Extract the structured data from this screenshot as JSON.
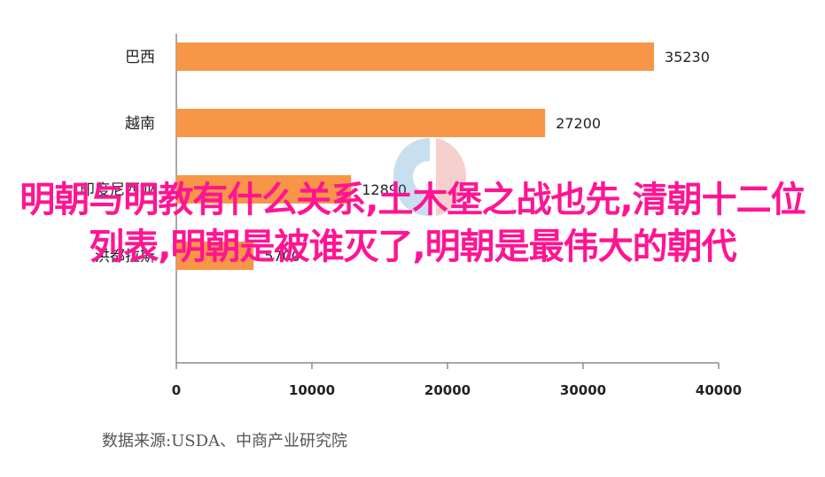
{
  "chart_data": {
    "type": "bar",
    "orientation": "horizontal",
    "categories": [
      "巴西",
      "越南",
      "印度尼西亚",
      "洪都拉斯"
    ],
    "values": [
      35230,
      27200,
      12890,
      5700
    ],
    "value_labels": [
      "35230",
      "27200",
      "12890",
      "5700"
    ],
    "xlim": [
      0,
      40000
    ],
    "xticks": [
      0,
      10000,
      20000,
      30000,
      40000
    ],
    "xtick_labels": [
      "0",
      "10000",
      "20000",
      "30000",
      "40000"
    ],
    "bar_color": "#f79646",
    "grid": false
  },
  "source_note": "数据来源:USDA、中商产业研究院",
  "overlay_title": "明朝与明教有什么关系,土木堡之战也先,清朝十二位 列表,明朝是被谁灭了,明朝是最伟大的朝代"
}
